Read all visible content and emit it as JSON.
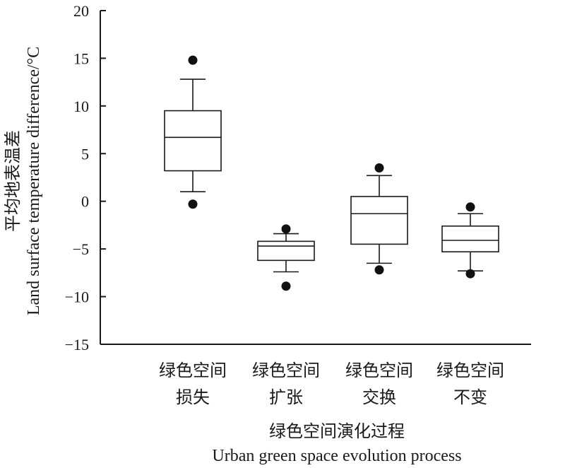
{
  "chart_data": {
    "type": "box",
    "categories": [
      [
        "绿色空间",
        "损失"
      ],
      [
        "绿色空间",
        "扩张"
      ],
      [
        "绿色空间",
        "交换"
      ],
      [
        "绿色空间",
        "不变"
      ]
    ],
    "boxes": [
      {
        "whisker_low": 1.0,
        "q1": 3.2,
        "median": 6.7,
        "q3": 9.5,
        "whisker_high": 12.8,
        "outliers": [
          14.8,
          -0.3
        ]
      },
      {
        "whisker_low": -7.4,
        "q1": -6.2,
        "median": -4.7,
        "q3": -4.2,
        "whisker_high": -3.4,
        "outliers": [
          -2.9,
          -8.9
        ]
      },
      {
        "whisker_low": -6.5,
        "q1": -4.5,
        "median": -1.3,
        "q3": 0.5,
        "whisker_high": 2.7,
        "outliers": [
          3.5,
          -7.2
        ]
      },
      {
        "whisker_low": -7.3,
        "q1": -5.3,
        "median": -4.1,
        "q3": -2.6,
        "whisker_high": -1.3,
        "outliers": [
          -0.6,
          -7.6
        ]
      }
    ],
    "ylim": [
      -15,
      20
    ],
    "yticks": [
      -15,
      -10,
      -5,
      0,
      5,
      10,
      15,
      20
    ],
    "ylabel_cn": "平均地表温差",
    "ylabel_en": "Land surface temperature difference/°C",
    "xlabel_cn": "绿色空间演化过程",
    "xlabel_en": "Urban green space evolution process",
    "grid": false
  }
}
